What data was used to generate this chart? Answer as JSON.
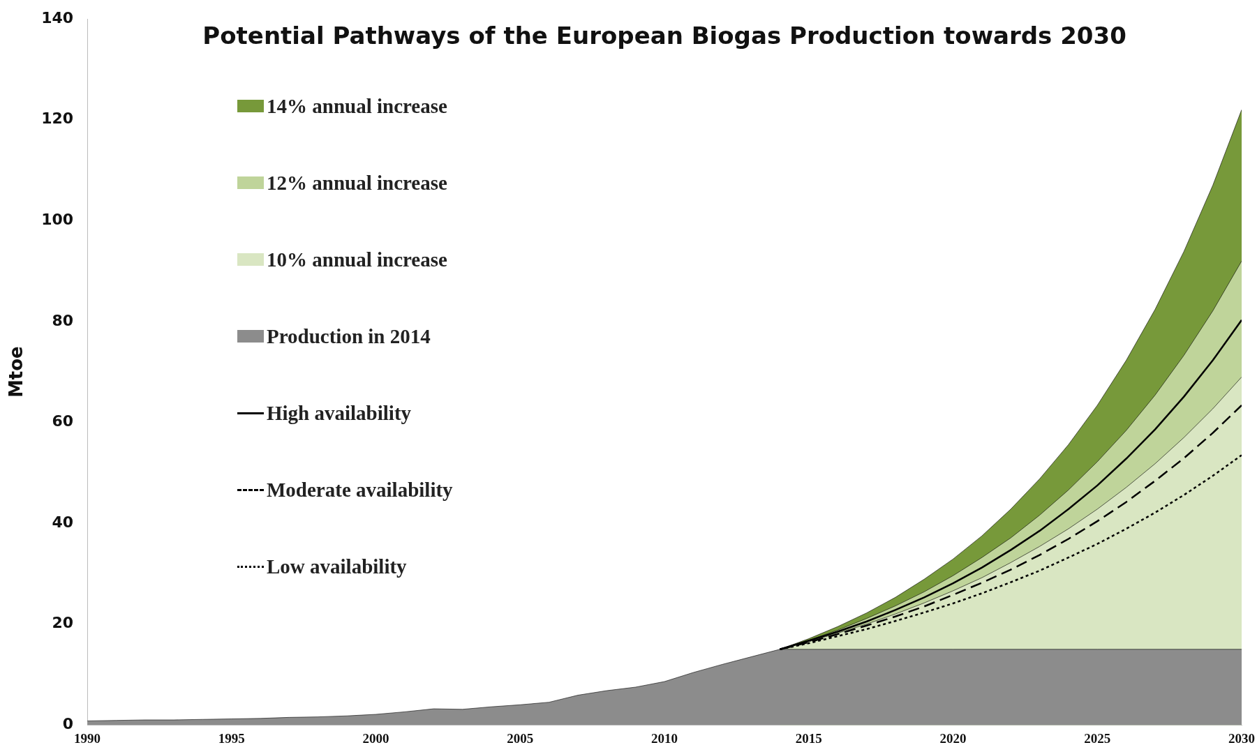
{
  "chart_data": {
    "type": "area",
    "title": "Potential Pathways of the European Biogas Production towards 2030",
    "ylabel": "Mtoe",
    "xlim": [
      1990,
      2030
    ],
    "xticks": [
      1990,
      1995,
      2000,
      2005,
      2010,
      2015,
      2020,
      2025,
      2030
    ],
    "ylim": [
      0,
      140
    ],
    "yticks": [
      0,
      20,
      40,
      60,
      80,
      100,
      120,
      140
    ],
    "grid": false,
    "legend": "top left",
    "series": [
      {
        "name": "14% annual increase",
        "color": "#77993a",
        "x": [
          2014,
          2015,
          2016,
          2017,
          2018,
          2019,
          2020,
          2021,
          2022,
          2023,
          2024,
          2025,
          2026,
          2027,
          2028,
          2029,
          2030
        ],
        "values": [
          15,
          17.1,
          19.5,
          22.2,
          25.3,
          28.9,
          32.9,
          37.5,
          42.8,
          48.8,
          55.6,
          63.4,
          72.3,
          82.4,
          93.9,
          107,
          122
        ]
      },
      {
        "name": "12% annual increase",
        "color": "#bfd49a",
        "x": [
          2014,
          2015,
          2016,
          2017,
          2018,
          2019,
          2020,
          2021,
          2022,
          2023,
          2024,
          2025,
          2026,
          2027,
          2028,
          2029,
          2030
        ],
        "values": [
          15,
          16.8,
          18.8,
          21.1,
          23.6,
          26.4,
          29.6,
          33.2,
          37.1,
          41.6,
          46.6,
          52.2,
          58.4,
          65.4,
          73.3,
          82.1,
          92
        ]
      },
      {
        "name": "10% annual increase",
        "color": "#d9e6c2",
        "x": [
          2014,
          2015,
          2016,
          2017,
          2018,
          2019,
          2020,
          2021,
          2022,
          2023,
          2024,
          2025,
          2026,
          2027,
          2028,
          2029,
          2030
        ],
        "values": [
          15,
          16.5,
          18.2,
          20,
          22,
          24.2,
          26.6,
          29.2,
          32.2,
          35.4,
          38.9,
          42.8,
          47.1,
          51.8,
          57,
          62.7,
          69
        ]
      },
      {
        "name": "Production in 2014",
        "color": "#8c8c8c",
        "x": [
          1990,
          1991,
          1992,
          1993,
          1994,
          1995,
          1996,
          1997,
          1998,
          1999,
          2000,
          2001,
          2002,
          2003,
          2004,
          2005,
          2006,
          2007,
          2008,
          2009,
          2010,
          2011,
          2012,
          2013,
          2014,
          2015,
          2020,
          2025,
          2030
        ],
        "values": [
          0.8,
          0.9,
          1,
          1,
          1.1,
          1.2,
          1.3,
          1.5,
          1.6,
          1.8,
          2.1,
          2.6,
          3.2,
          3.1,
          3.6,
          4,
          4.5,
          5.9,
          6.8,
          7.5,
          8.6,
          10.4,
          12,
          13.5,
          15,
          15,
          15,
          15,
          15
        ]
      },
      {
        "name": "High availability",
        "type": "line",
        "line_style": "solid",
        "color": "#000000",
        "x": [
          2014,
          2015,
          2016,
          2017,
          2018,
          2019,
          2020,
          2021,
          2022,
          2023,
          2024,
          2025,
          2026,
          2027,
          2028,
          2029,
          2030
        ],
        "values": [
          15,
          16.7,
          18.5,
          20.5,
          22.8,
          25.3,
          28.1,
          31.2,
          34.7,
          38.5,
          42.8,
          47.5,
          52.8,
          58.6,
          65.1,
          72.3,
          80.3
        ]
      },
      {
        "name": "Moderate availability",
        "type": "line",
        "line_style": "dashed",
        "color": "#000000",
        "x": [
          2014,
          2015,
          2016,
          2017,
          2018,
          2019,
          2020,
          2021,
          2022,
          2023,
          2024,
          2025,
          2026,
          2027,
          2028,
          2029,
          2030
        ],
        "values": [
          15,
          16.4,
          18,
          19.7,
          21.5,
          23.5,
          25.8,
          28.2,
          30.8,
          33.7,
          36.9,
          40.4,
          44.2,
          48.4,
          52.9,
          57.9,
          63.4
        ]
      },
      {
        "name": "Low availability",
        "type": "line",
        "line_style": "dotted",
        "color": "#000000",
        "x": [
          2014,
          2015,
          2016,
          2017,
          2018,
          2019,
          2020,
          2021,
          2022,
          2023,
          2024,
          2025,
          2026,
          2027,
          2028,
          2029,
          2030
        ],
        "values": [
          15,
          16.2,
          17.6,
          19,
          20.6,
          22.3,
          24.1,
          26.1,
          28.3,
          30.6,
          33.2,
          35.9,
          38.9,
          42.1,
          45.6,
          49.4,
          53.5
        ]
      }
    ]
  }
}
